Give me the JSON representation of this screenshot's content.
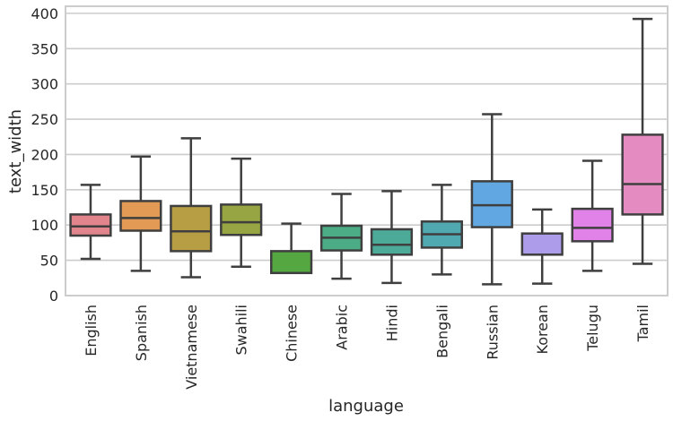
{
  "chart_data": {
    "type": "box",
    "title": "",
    "xlabel": "language",
    "ylabel": "text_width",
    "ylim": [
      0,
      410
    ],
    "yticks": [
      0,
      50,
      100,
      150,
      200,
      250,
      300,
      350,
      400
    ],
    "ytick_labels": [
      "0",
      "50",
      "100",
      "150",
      "200",
      "250",
      "300",
      "350",
      "400"
    ],
    "grid": true,
    "categories": [
      "English",
      "Spanish",
      "Vietnamese",
      "Swahili",
      "Chinese",
      "Arabic",
      "Hindi",
      "Bengali",
      "Russian",
      "Korean",
      "Telugu",
      "Tamil"
    ],
    "boxes": [
      {
        "whisker_low": 52,
        "q1": 85,
        "median": 98,
        "q3": 115,
        "whisker_high": 157
      },
      {
        "whisker_low": 35,
        "q1": 92,
        "median": 110,
        "q3": 134,
        "whisker_high": 197
      },
      {
        "whisker_low": 26,
        "q1": 63,
        "median": 91,
        "q3": 127,
        "whisker_high": 223
      },
      {
        "whisker_low": 41,
        "q1": 86,
        "median": 104,
        "q3": 129,
        "whisker_high": 194
      },
      {
        "whisker_low": 32,
        "q1": 32,
        "median": 32,
        "q3": 63,
        "whisker_high": 102
      },
      {
        "whisker_low": 24,
        "q1": 64,
        "median": 82,
        "q3": 99,
        "whisker_high": 144
      },
      {
        "whisker_low": 18,
        "q1": 58,
        "median": 72,
        "q3": 94,
        "whisker_high": 148
      },
      {
        "whisker_low": 30,
        "q1": 68,
        "median": 87,
        "q3": 105,
        "whisker_high": 157
      },
      {
        "whisker_low": 16,
        "q1": 97,
        "median": 128,
        "q3": 162,
        "whisker_high": 257
      },
      {
        "whisker_low": 17,
        "q1": 58,
        "median": 58,
        "q3": 88,
        "whisker_high": 122
      },
      {
        "whisker_low": 35,
        "q1": 77,
        "median": 96,
        "q3": 123,
        "whisker_high": 191
      },
      {
        "whisker_low": 45,
        "q1": 115,
        "median": 158,
        "q3": 228,
        "whisker_high": 392
      }
    ],
    "colors": [
      "#e1848b",
      "#e29a55",
      "#b79e45",
      "#97a542",
      "#55a841",
      "#4cac85",
      "#4caa99",
      "#50a9b0",
      "#61a8e2",
      "#ad9ce9",
      "#e182e8",
      "#e48bc2"
    ],
    "line_color": "#3f3f3f",
    "grid_color": "#cccccc"
  }
}
